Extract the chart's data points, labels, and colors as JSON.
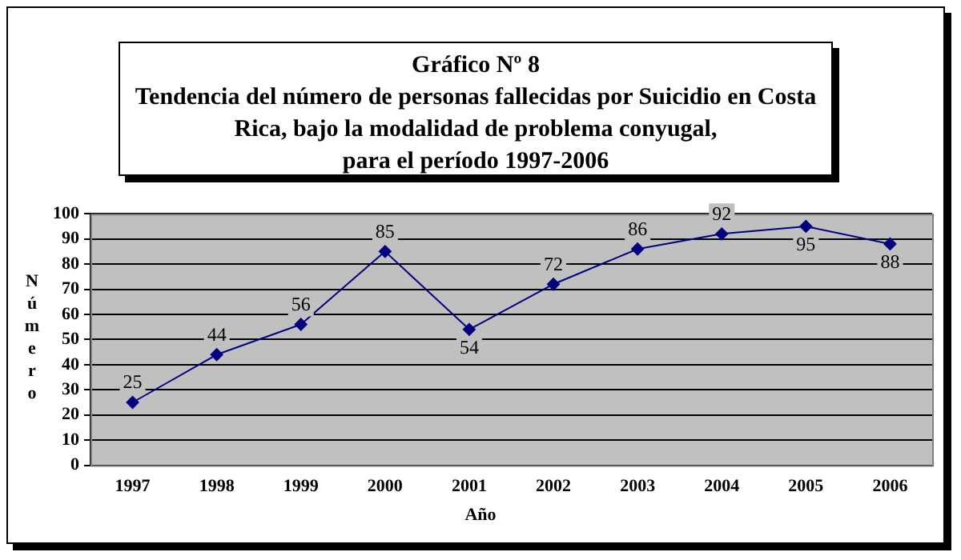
{
  "chart_data": {
    "type": "line",
    "title": "Gráfico Nº 8\nTendencia del número de personas fallecidas por Suicidio en Costa Rica, bajo la modalidad de problema conyugal,\npara el período 1997-2006",
    "xlabel": "Año",
    "ylabel": "Número",
    "categories": [
      "1997",
      "1998",
      "1999",
      "2000",
      "2001",
      "2002",
      "2003",
      "2004",
      "2005",
      "2006"
    ],
    "series": [
      {
        "color": "#000080",
        "values": [
          25,
          44,
          56,
          85,
          54,
          72,
          86,
          92,
          95,
          88
        ]
      }
    ],
    "ylim": [
      0,
      100
    ],
    "yticks": [
      0,
      10,
      20,
      30,
      40,
      50,
      60,
      70,
      80,
      90,
      100
    ],
    "grid": "y",
    "legend": false,
    "marker": "diamond",
    "line_style": "solid",
    "data_labels": true
  }
}
